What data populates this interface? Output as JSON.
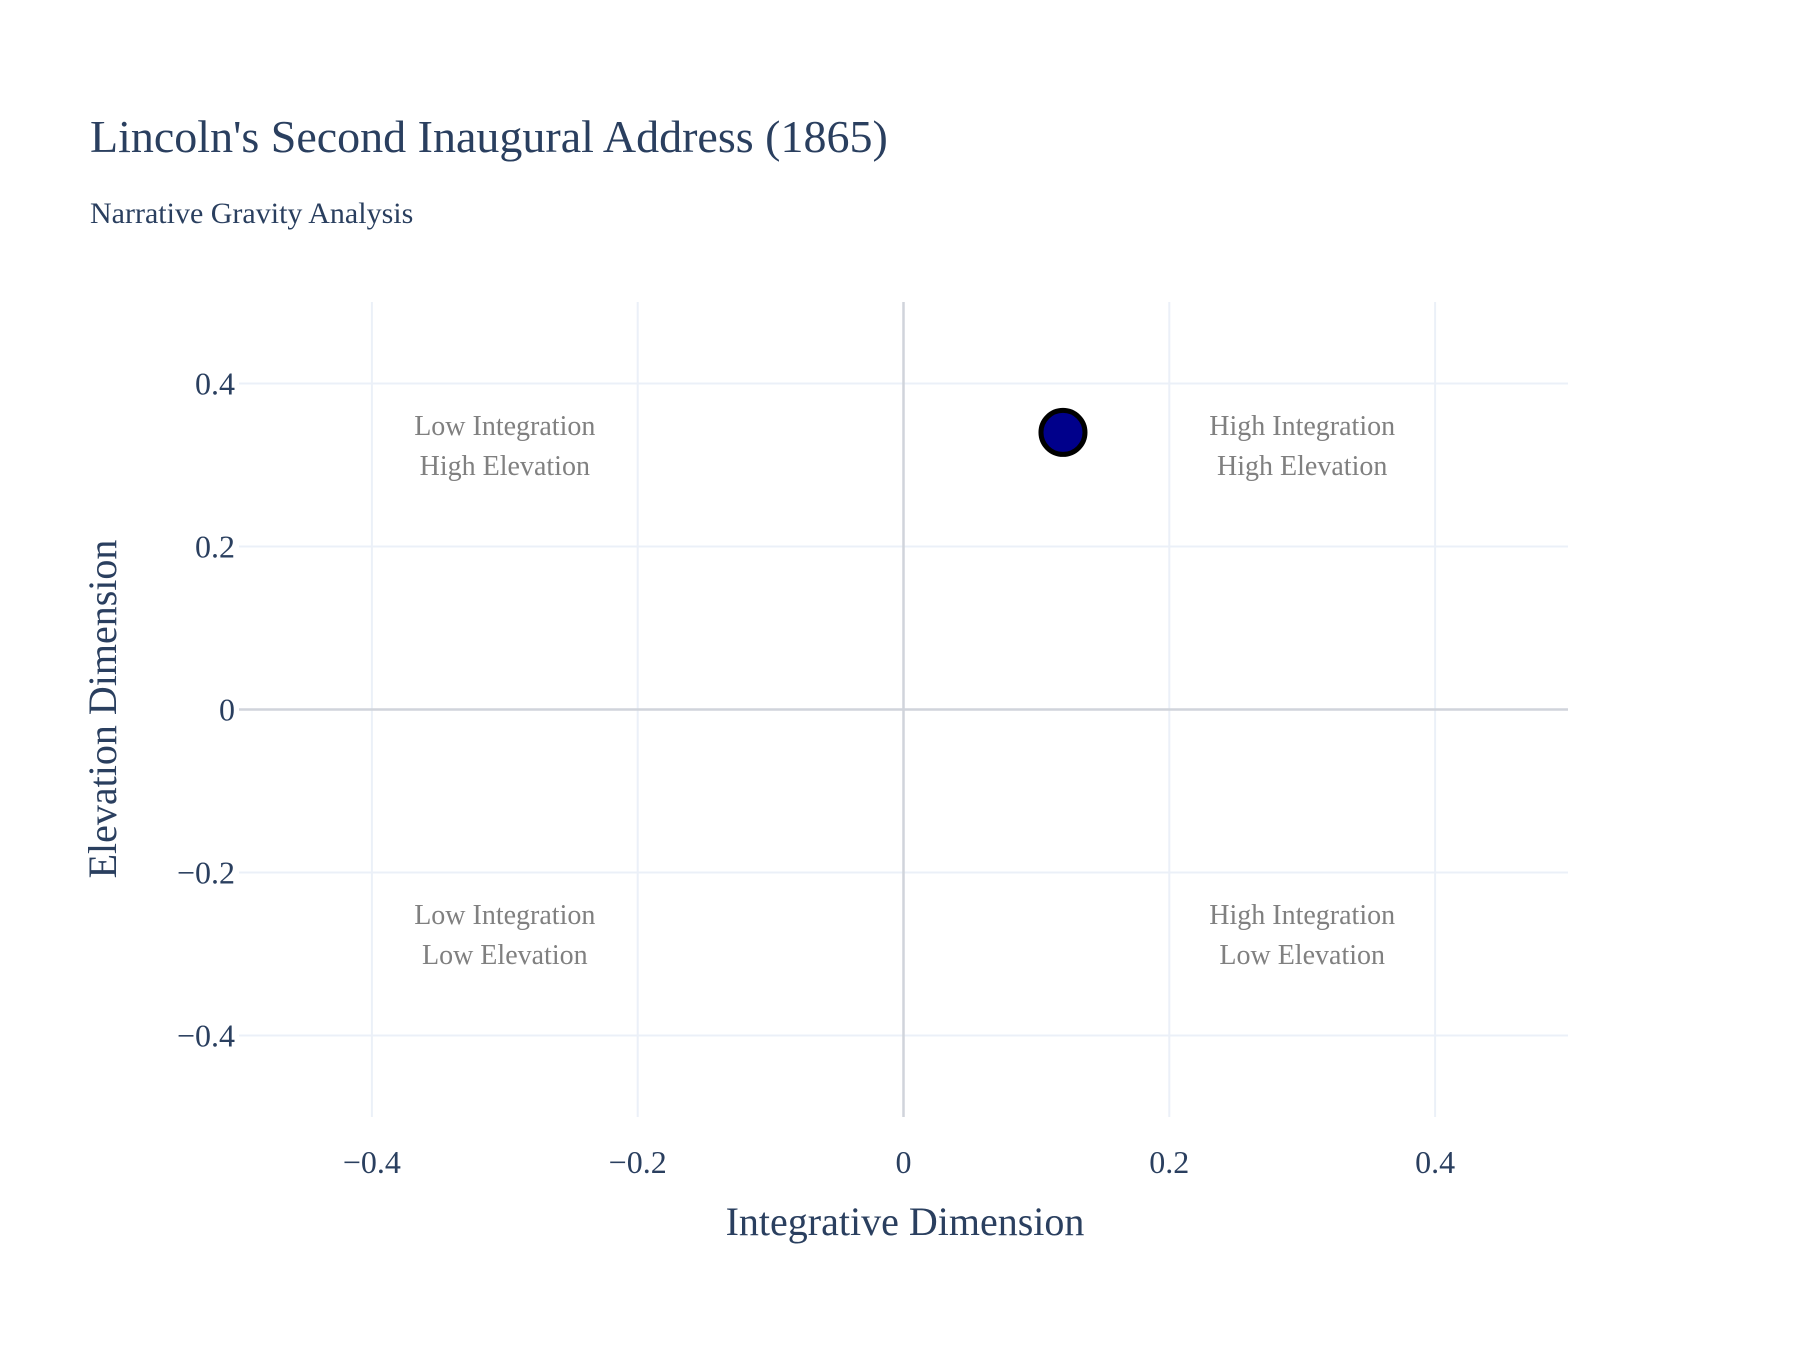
{
  "chart_data": {
    "type": "scatter",
    "title": "Lincoln's Second Inaugural Address (1865)",
    "subtitle": "Narrative Gravity Analysis",
    "xlabel": "Integrative Dimension",
    "ylabel": "Elevation Dimension",
    "xlim": [
      -0.5,
      0.5
    ],
    "ylim": [
      -0.5,
      0.5
    ],
    "x_ticks": [
      {
        "value": -0.4,
        "label": "−0.4"
      },
      {
        "value": -0.2,
        "label": "−0.2"
      },
      {
        "value": 0,
        "label": "0"
      },
      {
        "value": 0.2,
        "label": "0.2"
      },
      {
        "value": 0.4,
        "label": "0.4"
      }
    ],
    "y_ticks": [
      {
        "value": 0.4,
        "label": "0.4"
      },
      {
        "value": 0.2,
        "label": "0.2"
      },
      {
        "value": 0,
        "label": "0"
      },
      {
        "value": -0.2,
        "label": "−0.2"
      },
      {
        "value": -0.4,
        "label": "−0.4"
      }
    ],
    "grid": true,
    "series": [
      {
        "points": [
          {
            "x": 0.12,
            "y": 0.34
          }
        ],
        "color": "#00008b",
        "edge_color": "#000000"
      }
    ],
    "annotations": [
      {
        "x": -0.3,
        "y": 0.3,
        "lines": [
          "Low Integration",
          "High Elevation"
        ]
      },
      {
        "x": 0.3,
        "y": 0.3,
        "lines": [
          "High Integration",
          "High Elevation"
        ]
      },
      {
        "x": -0.3,
        "y": -0.3,
        "lines": [
          "Low Integration",
          "Low Elevation"
        ]
      },
      {
        "x": 0.3,
        "y": -0.3,
        "lines": [
          "High Integration",
          "Low Elevation"
        ]
      }
    ],
    "colors": {
      "grid": "#ebf0f8",
      "zeroline": "#d0d4db",
      "annotation": "#808080",
      "text": "#2a3f5f"
    }
  }
}
